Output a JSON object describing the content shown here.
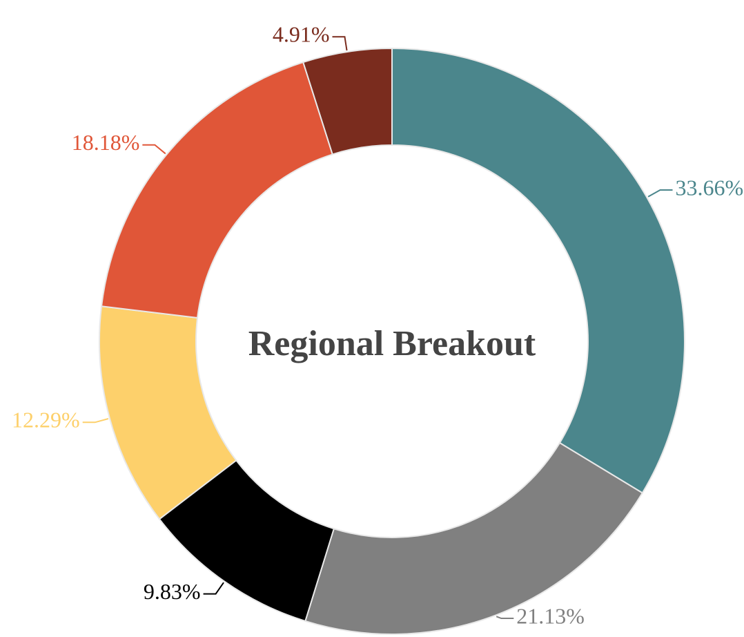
{
  "chart_data": {
    "type": "donut",
    "title": "Regional Breakout",
    "values": [
      33.66,
      21.13,
      9.83,
      12.29,
      18.18,
      4.91
    ],
    "value_labels": [
      "33.66%",
      "21.13%",
      "9.83%",
      "12.29%",
      "18.18%",
      "4.91%"
    ],
    "colors": [
      "#4b868c",
      "#808080",
      "#000000",
      "#fdd06b",
      "#e05638",
      "#7a2c1e"
    ]
  }
}
